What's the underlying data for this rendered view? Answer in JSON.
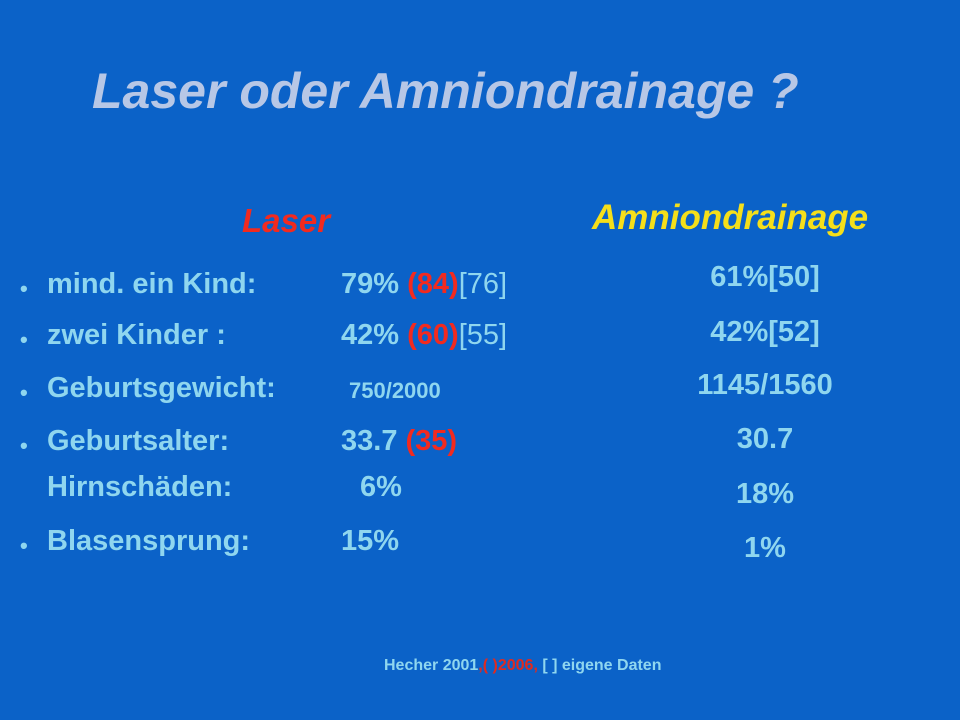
{
  "title": "Laser oder Amniondrainage ?",
  "laser": {
    "heading": "Laser",
    "rows": [
      {
        "label": "mind. ein Kind:",
        "value": "79%",
        "red": "(84)",
        "bracket": "[76]"
      },
      {
        "label": "zwei Kinder :",
        "value": "42%",
        "red": "(60)",
        "bracket": "[55]"
      },
      {
        "label": "Geburtsgewicht:",
        "value": "750/2000"
      },
      {
        "label": "Geburtsalter:",
        "value": "33.7",
        "red": "(35)"
      },
      {
        "label": "Hirnschäden:",
        "value": "6%"
      },
      {
        "label": "Blasensprung:",
        "value": "15%"
      }
    ]
  },
  "amniondrainage": {
    "heading": "Amniondrainage",
    "values": [
      "61%[50]",
      "42%[52]",
      "1145/1560",
      "30.7",
      "18%",
      "1%"
    ]
  },
  "footer": {
    "part1": "Hecher 2001",
    "part2": ",(  )2006,",
    "part3": " [ ] eigene Daten"
  }
}
